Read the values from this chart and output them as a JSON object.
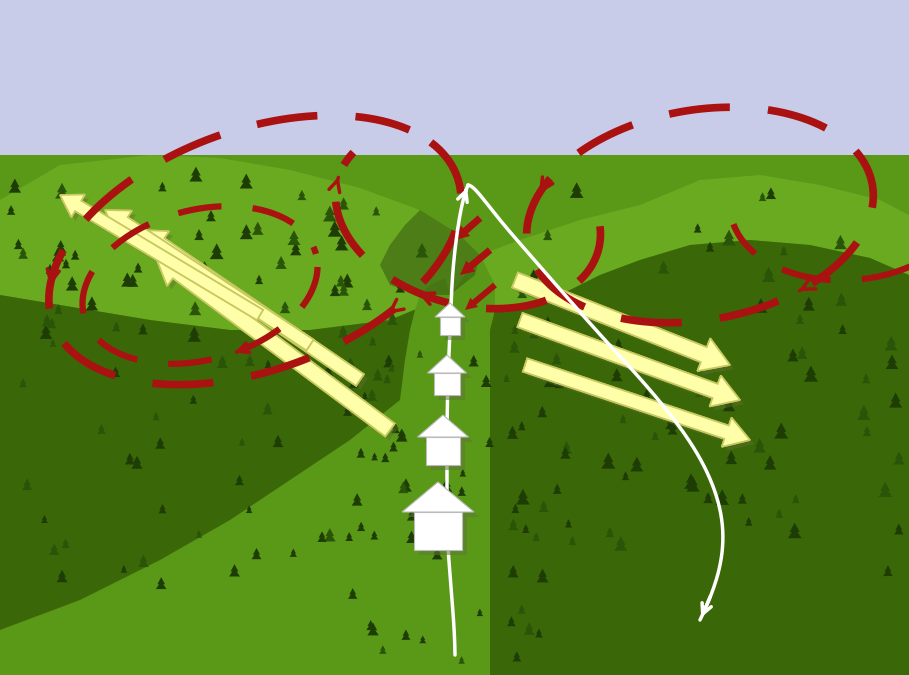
{
  "sky_top": "#c8cce8",
  "sky_bottom": "#d8dce8",
  "terrain_top_green": "#6aaa20",
  "terrain_mid_green": "#5a9818",
  "terrain_dark_green": "#3a6808",
  "terrain_very_dark": "#2d5008",
  "terrain_shadow": "#3a6010",
  "hill_highlight": "#78bb22",
  "tree_dark": "#1e3d05",
  "tree_mid": "#2a5508",
  "yellow_fill": "#ffffaa",
  "yellow_edge": "#c8c860",
  "red_circ": "#aa1111",
  "white_col": "#ffffff",
  "shadow_col": "#607030",
  "figsize": [
    9.09,
    6.75
  ],
  "dpi": 100
}
